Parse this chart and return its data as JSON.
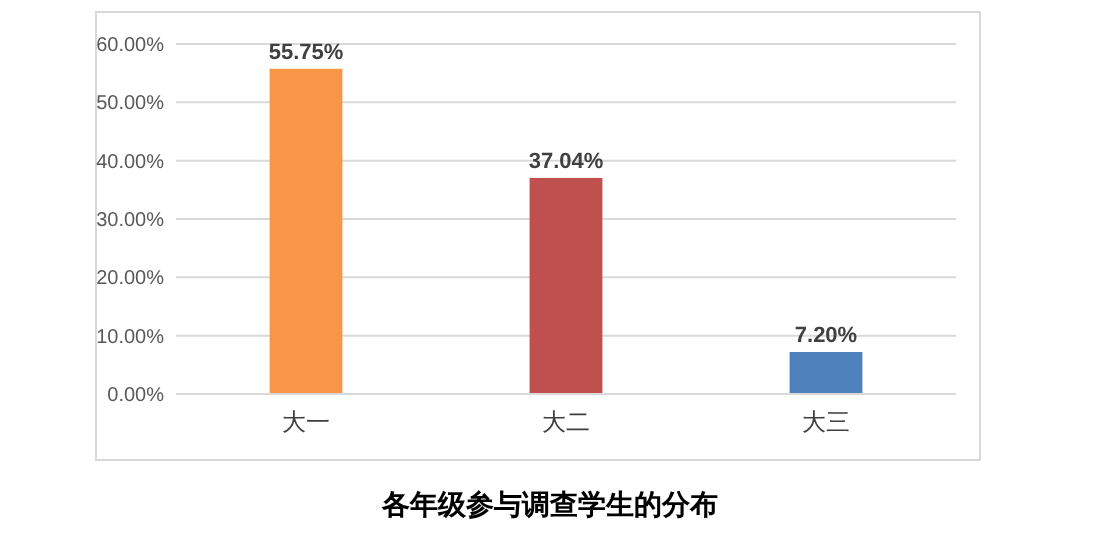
{
  "chart_data": {
    "type": "bar",
    "title": "各年级参与调查学生的分布",
    "categories": [
      "大一",
      "大二",
      "大三"
    ],
    "values": [
      55.75,
      37.04,
      7.2
    ],
    "colors": [
      "#f79646",
      "#c0504d",
      "#4f81bd"
    ],
    "value_labels": [
      "55.75%",
      "37.04%",
      "7.20%"
    ],
    "ylim": [
      0,
      60
    ],
    "yticks": [
      {
        "value": 0,
        "label": "0.00%"
      },
      {
        "value": 10,
        "label": "10.00%"
      },
      {
        "value": 20,
        "label": "20.00%"
      },
      {
        "value": 30,
        "label": "30.00%"
      },
      {
        "value": 40,
        "label": "40.00%"
      },
      {
        "value": 50,
        "label": "50.00%"
      },
      {
        "value": 60,
        "label": "60.00%"
      }
    ],
    "grid": "y"
  }
}
